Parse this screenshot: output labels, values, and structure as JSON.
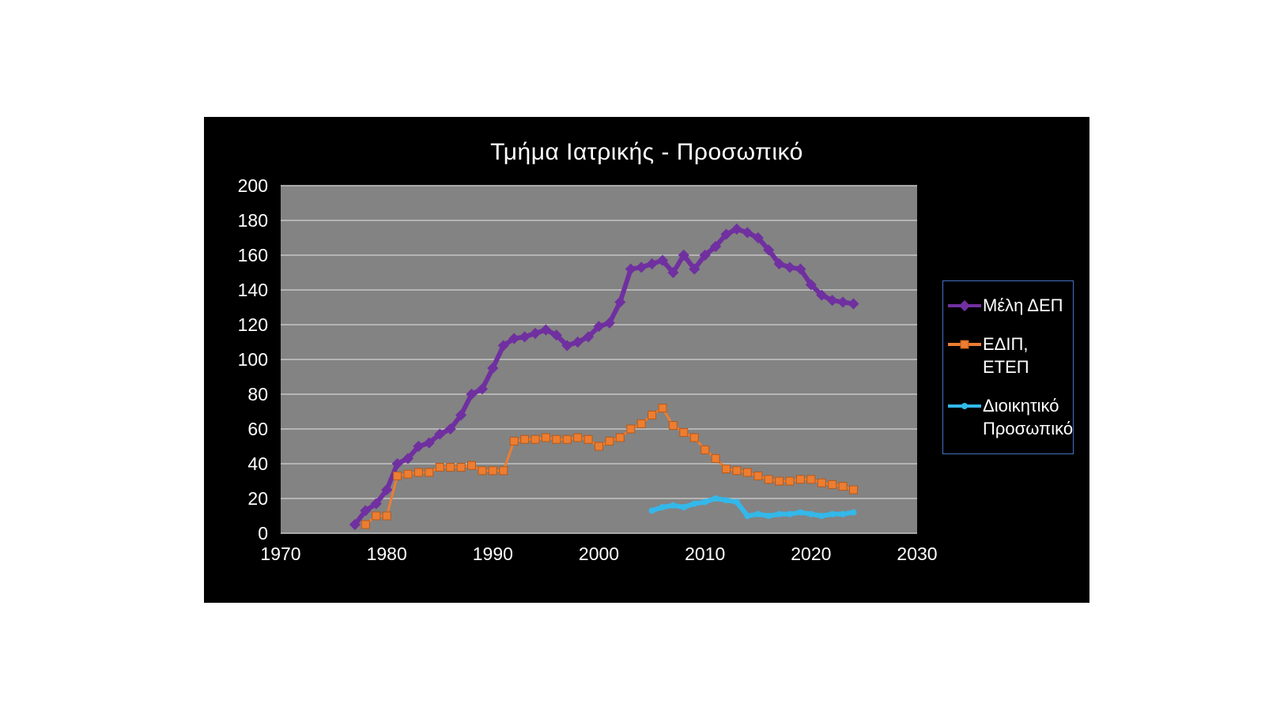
{
  "chart_data": {
    "type": "line",
    "title": "Τμήμα Ιατρικής - Προσωπικό",
    "xlabel": "",
    "ylabel": "",
    "x_min": 1970,
    "x_max": 2030,
    "x_step": 10,
    "y_min": 0,
    "y_max": 200,
    "y_step": 20,
    "grid": true,
    "legend_position": "right",
    "colors": {
      "chart_bg": "#000000",
      "plot_bg": "#838383",
      "grid": "#c6c6c6",
      "text": "#ffffff",
      "legend_border": "#4472c4"
    },
    "series": [
      {
        "name": "Μέλη ΔΕΠ",
        "color": "#7030a0",
        "marker": "diamond",
        "marker_size": 5,
        "marker_stroke": "#7030a0",
        "line_width": 6,
        "points": [
          [
            1977,
            5
          ],
          [
            1978,
            13
          ],
          [
            1979,
            17
          ],
          [
            1980,
            25
          ],
          [
            1981,
            40
          ],
          [
            1982,
            43
          ],
          [
            1983,
            50
          ],
          [
            1984,
            52
          ],
          [
            1985,
            57
          ],
          [
            1986,
            60
          ],
          [
            1987,
            68
          ],
          [
            1988,
            80
          ],
          [
            1989,
            83
          ],
          [
            1990,
            95
          ],
          [
            1991,
            108
          ],
          [
            1992,
            112
          ],
          [
            1993,
            113
          ],
          [
            1994,
            115
          ],
          [
            1995,
            117
          ],
          [
            1996,
            114
          ],
          [
            1997,
            108
          ],
          [
            1998,
            110
          ],
          [
            1999,
            113
          ],
          [
            2000,
            119
          ],
          [
            2001,
            121
          ],
          [
            2002,
            133
          ],
          [
            2003,
            152
          ],
          [
            2004,
            153
          ],
          [
            2005,
            155
          ],
          [
            2006,
            157
          ],
          [
            2007,
            150
          ],
          [
            2008,
            160
          ],
          [
            2009,
            152
          ],
          [
            2010,
            160
          ],
          [
            2011,
            165
          ],
          [
            2012,
            172
          ],
          [
            2013,
            175
          ],
          [
            2014,
            173
          ],
          [
            2015,
            170
          ],
          [
            2016,
            163
          ],
          [
            2017,
            155
          ],
          [
            2018,
            153
          ],
          [
            2019,
            152
          ],
          [
            2020,
            143
          ],
          [
            2021,
            137
          ],
          [
            2022,
            134
          ],
          [
            2023,
            133
          ],
          [
            2024,
            132
          ]
        ]
      },
      {
        "name": "ΕΔΙΠ, ΕΤΕΠ",
        "color": "#ed7d31",
        "marker": "square",
        "marker_size": 5,
        "marker_stroke": "#b55a1a",
        "line_width": 3,
        "points": [
          [
            1978,
            5
          ],
          [
            1979,
            10
          ],
          [
            1980,
            10
          ],
          [
            1981,
            33
          ],
          [
            1982,
            34
          ],
          [
            1983,
            35
          ],
          [
            1984,
            35
          ],
          [
            1985,
            38
          ],
          [
            1986,
            38
          ],
          [
            1987,
            38
          ],
          [
            1988,
            39
          ],
          [
            1989,
            36
          ],
          [
            1990,
            36
          ],
          [
            1991,
            36
          ],
          [
            1992,
            53
          ],
          [
            1993,
            54
          ],
          [
            1994,
            54
          ],
          [
            1995,
            55
          ],
          [
            1996,
            54
          ],
          [
            1997,
            54
          ],
          [
            1998,
            55
          ],
          [
            1999,
            54
          ],
          [
            2000,
            50
          ],
          [
            2001,
            53
          ],
          [
            2002,
            55
          ],
          [
            2003,
            60
          ],
          [
            2004,
            63
          ],
          [
            2005,
            68
          ],
          [
            2006,
            72
          ],
          [
            2007,
            62
          ],
          [
            2008,
            58
          ],
          [
            2009,
            55
          ],
          [
            2010,
            48
          ],
          [
            2011,
            43
          ],
          [
            2012,
            37
          ],
          [
            2013,
            36
          ],
          [
            2014,
            35
          ],
          [
            2015,
            33
          ],
          [
            2016,
            31
          ],
          [
            2017,
            30
          ],
          [
            2018,
            30
          ],
          [
            2019,
            31
          ],
          [
            2020,
            31
          ],
          [
            2021,
            29
          ],
          [
            2022,
            28
          ],
          [
            2023,
            27
          ],
          [
            2024,
            25
          ]
        ]
      },
      {
        "name": "Διοικητικό Προσωπικό",
        "color": "#33b8ea",
        "marker": "circle",
        "marker_size": 4,
        "marker_stroke": "#33b8ea",
        "line_width": 6,
        "points": [
          [
            2005,
            13
          ],
          [
            2006,
            15
          ],
          [
            2007,
            16
          ],
          [
            2008,
            15
          ],
          [
            2009,
            17
          ],
          [
            2010,
            18
          ],
          [
            2011,
            20
          ],
          [
            2012,
            19
          ],
          [
            2013,
            18
          ],
          [
            2014,
            10
          ],
          [
            2015,
            11
          ],
          [
            2016,
            10
          ],
          [
            2017,
            11
          ],
          [
            2018,
            11
          ],
          [
            2019,
            12
          ],
          [
            2020,
            11
          ],
          [
            2021,
            10
          ],
          [
            2022,
            11
          ],
          [
            2023,
            11
          ],
          [
            2024,
            12
          ]
        ]
      }
    ]
  }
}
